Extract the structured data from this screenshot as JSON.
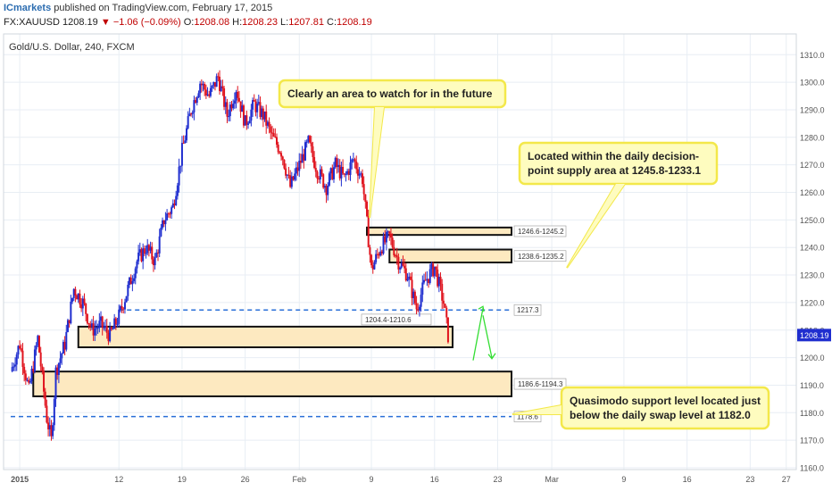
{
  "header": {
    "publisher": "ICmarkets",
    "published_text": "published on TradingView.com, February 17, 2015",
    "symbol": "FX:XAUUSD",
    "last": "1208.19",
    "arrow": "▼",
    "change": "−1.06 (−0.09%)",
    "o_label": "O:",
    "o": "1208.08",
    "h_label": "H:",
    "h": "1208.23",
    "l_label": "L:",
    "l": "1207.81",
    "c_label": "C:",
    "c": "1208.19"
  },
  "chart_data": {
    "type": "candlestick",
    "title": "Gold/U.S. Dollar, 240, FXCM",
    "ylim": [
      1160,
      1313
    ],
    "yticks": [
      1160,
      1170,
      1180,
      1190,
      1200,
      1210,
      1220,
      1230,
      1240,
      1250,
      1260,
      1270,
      1280,
      1290,
      1300,
      1310
    ],
    "xlim_days": [
      -1,
      57
    ],
    "xticks": [
      {
        "label": "2015",
        "day": 0
      },
      {
        "label": "12",
        "day": 11
      },
      {
        "label": "19",
        "day": 18
      },
      {
        "label": "26",
        "day": 25
      },
      {
        "label": "Feb",
        "day": 31
      },
      {
        "label": "9",
        "day": 39
      },
      {
        "label": "16",
        "day": 46
      },
      {
        "label": "23",
        "day": 53
      },
      {
        "label": "Mar",
        "day": 59
      },
      {
        "label": "9",
        "day": 67
      },
      {
        "label": "16",
        "day": 74
      },
      {
        "label": "23",
        "day": 81
      },
      {
        "label": "27",
        "day": 85
      }
    ],
    "price_path": [
      [
        -1,
        1195
      ],
      [
        0,
        1205
      ],
      [
        1,
        1188
      ],
      [
        2,
        1207
      ],
      [
        3,
        1178
      ],
      [
        3.5,
        1170
      ],
      [
        4,
        1195
      ],
      [
        5,
        1205
      ],
      [
        6,
        1225
      ],
      [
        7,
        1220
      ],
      [
        8,
        1210
      ],
      [
        9,
        1212
      ],
      [
        10,
        1208
      ],
      [
        11,
        1215
      ],
      [
        12,
        1225
      ],
      [
        13,
        1235
      ],
      [
        14,
        1240
      ],
      [
        15,
        1235
      ],
      [
        16,
        1250
      ],
      [
        17,
        1255
      ],
      [
        18,
        1275
      ],
      [
        19,
        1290
      ],
      [
        20,
        1300
      ],
      [
        21,
        1295
      ],
      [
        22,
        1302
      ],
      [
        23,
        1288
      ],
      [
        24,
        1298
      ],
      [
        25,
        1285
      ],
      [
        26,
        1292
      ],
      [
        27,
        1288
      ],
      [
        28,
        1280
      ],
      [
        29,
        1275
      ],
      [
        30,
        1262
      ],
      [
        31,
        1270
      ],
      [
        32,
        1278
      ],
      [
        33,
        1268
      ],
      [
        34,
        1262
      ],
      [
        35,
        1270
      ],
      [
        36,
        1265
      ],
      [
        37,
        1272
      ],
      [
        38,
        1265
      ],
      [
        39,
        1232
      ],
      [
        40,
        1240
      ],
      [
        41,
        1244
      ],
      [
        42,
        1235
      ],
      [
        43,
        1230
      ],
      [
        44,
        1218
      ],
      [
        45,
        1228
      ],
      [
        46,
        1233
      ],
      [
        47,
        1220
      ],
      [
        47.5,
        1208
      ]
    ],
    "zones": [
      {
        "label": "1246.6-1245.2",
        "low": 1245.2,
        "high": 1246.6,
        "from_day": 38.5
      },
      {
        "label": "1238.6-1235.2",
        "low": 1235.2,
        "high": 1238.6,
        "from_day": 41
      },
      {
        "label": "1204.4-1210.6",
        "low": 1204.4,
        "high": 1210.6,
        "from_day": 6.5,
        "to_day": 48,
        "label_above": true
      },
      {
        "label": "1186.6-1194.3",
        "low": 1186.6,
        "high": 1194.3,
        "from_day": 1.5
      }
    ],
    "levels": [
      {
        "label": "1217.3",
        "value": 1217.3,
        "from_day": 11
      },
      {
        "label": "1178.6",
        "value": 1178.6,
        "from_day": -1
      }
    ],
    "last_price": 1208.19,
    "last_price_label": "1208.19",
    "annotations": [
      {
        "text": [
          "Clearly an area to watch for in the future"
        ]
      },
      {
        "text": [
          "Located within the daily decision-",
          "point supply area at 1245.8-1233.1"
        ]
      },
      {
        "text": [
          "Quasimodo support level located just",
          "below the daily swap level at 1182.0"
        ]
      }
    ]
  },
  "colors": {
    "bull": "#1f2ecf",
    "bear": "#e0141e",
    "zone_fill": "#fde9c0",
    "annotation_fill": "#fefcbf",
    "annotation_border": "#f3e84a",
    "level": "#2a6fd8",
    "forecast": "#33dd33",
    "grid": "#e8eef4"
  }
}
